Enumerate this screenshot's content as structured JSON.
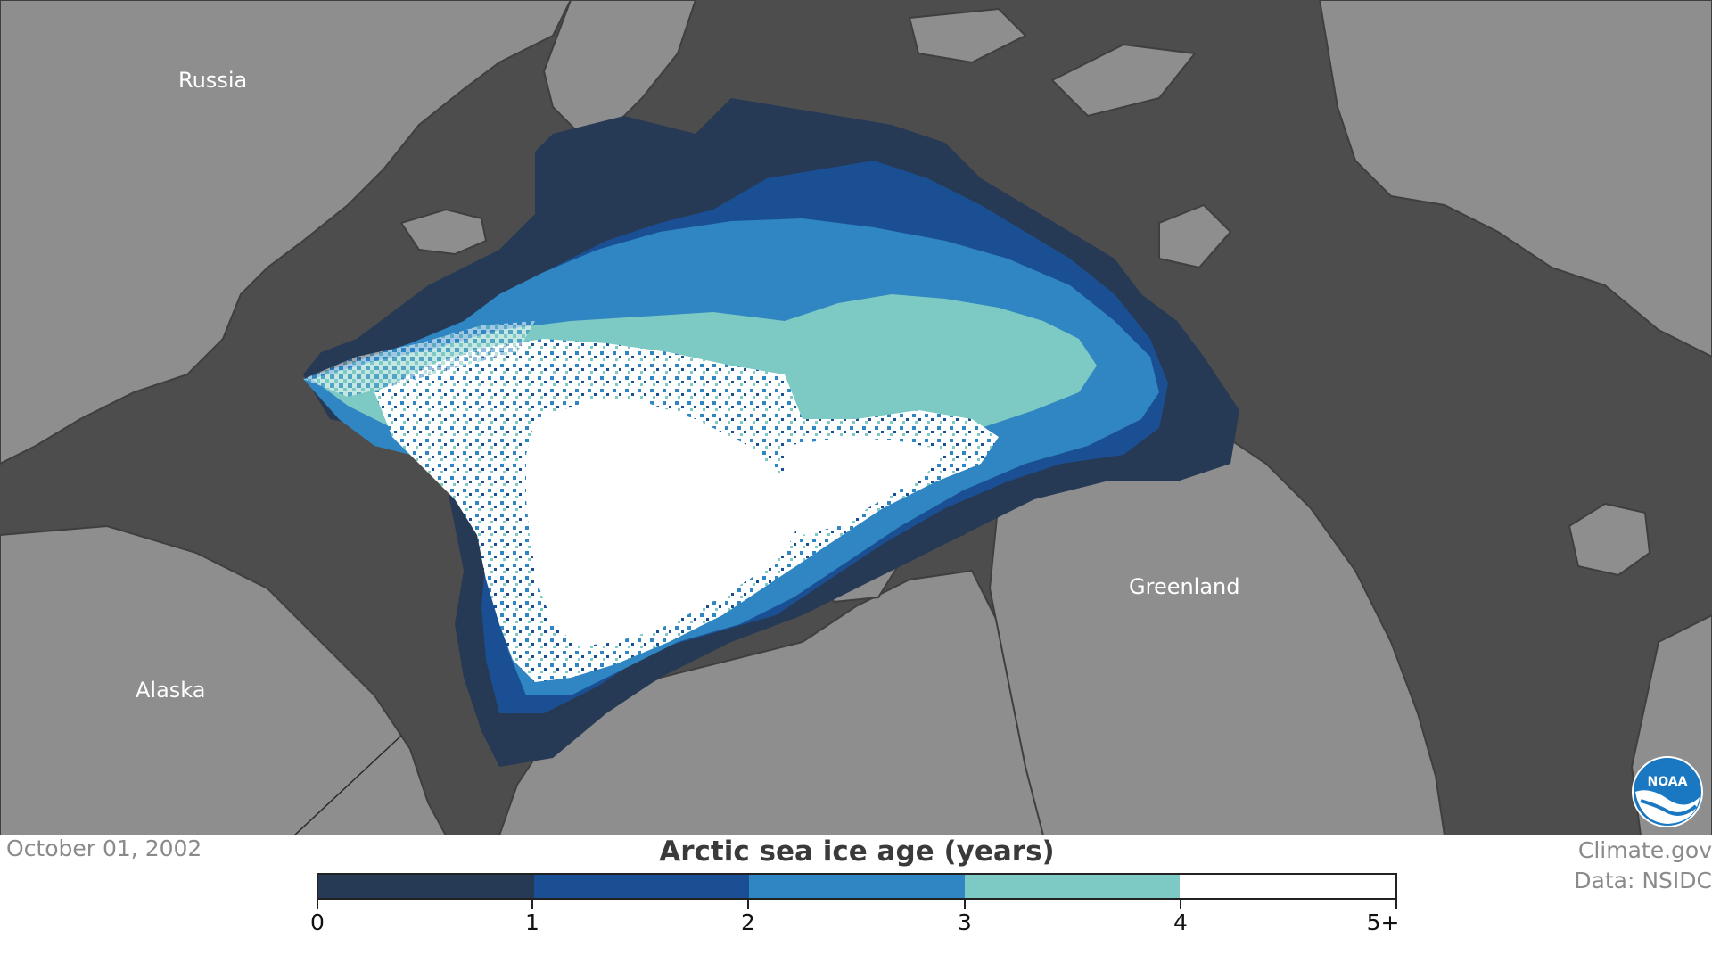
{
  "map": {
    "labels": {
      "russia": "Russia",
      "alaska": "Alaska",
      "greenland": "Greenland"
    },
    "colors": {
      "ocean": "#4d4d4d",
      "land": "#8e8e8e",
      "coast": "#3f3f3f"
    },
    "logo": "noaa-logo"
  },
  "footer": {
    "date": "October 01, 2002",
    "legend_title": "Arctic sea ice age (years)",
    "ticks": [
      "0",
      "1",
      "2",
      "3",
      "4",
      "5+"
    ],
    "colors": [
      "#263a55",
      "#1b4f93",
      "#2f86c2",
      "#7ccac3",
      "#ffffff"
    ],
    "credit_line1": "Climate.gov",
    "credit_line2": "Data: NSIDC"
  }
}
